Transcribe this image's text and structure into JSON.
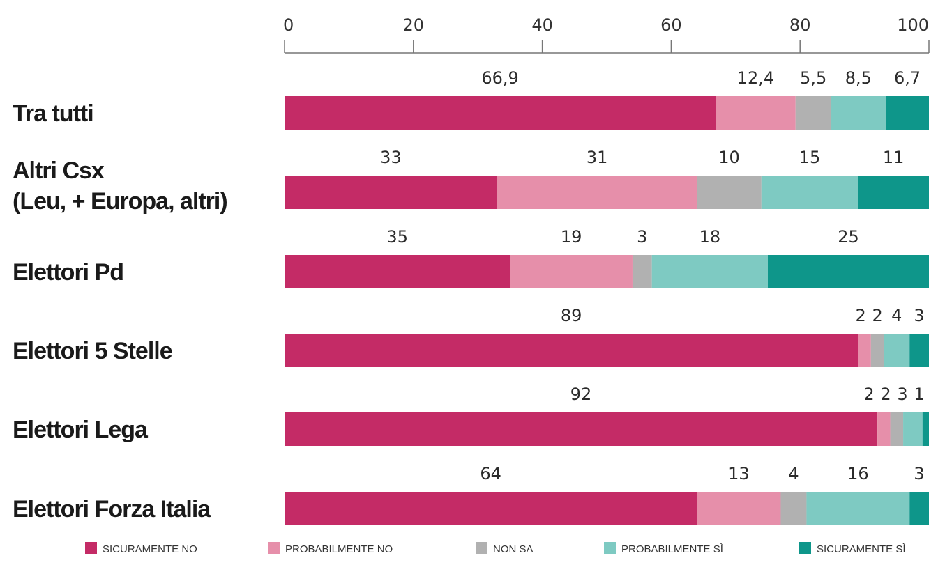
{
  "chart_data": {
    "type": "bar",
    "orientation": "horizontal",
    "stacked": true,
    "xlim": [
      0,
      100
    ],
    "x_ticks": [
      "0",
      "20",
      "40",
      "60",
      "80",
      "100"
    ],
    "x_tick_values": [
      0,
      20,
      40,
      60,
      80,
      100
    ],
    "x_axis_position": "top",
    "grid": false,
    "legend_position": "bottom",
    "categories": [
      "Tra tutti",
      "Altri Csx\n(Leu, + Europa, altri)",
      "Elettori Pd",
      "Elettori 5 Stelle",
      "Elettori Lega",
      "Elettori Forza Italia"
    ],
    "series": [
      {
        "name": "SICURAMENTE NO",
        "color": "#c42b66",
        "values": [
          66.9,
          33,
          35,
          89,
          92,
          64
        ],
        "labels": [
          "66,9",
          "33",
          "35",
          "89",
          "92",
          "64"
        ]
      },
      {
        "name": "PROBABILMENTE NO",
        "color": "#e68faa",
        "values": [
          12.4,
          31,
          19,
          2,
          2,
          13
        ],
        "labels": [
          "12,4",
          "31",
          "19",
          "2",
          "2",
          "13"
        ]
      },
      {
        "name": "NON SA",
        "color": "#b1b1b1",
        "values": [
          5.5,
          10,
          3,
          2,
          2,
          4
        ],
        "labels": [
          "5,5",
          "10",
          "3",
          "2",
          "2",
          "4"
        ]
      },
      {
        "name": "PROBABILMENTE SÌ",
        "color": "#7ecac2",
        "values": [
          8.5,
          15,
          18,
          4,
          3,
          16
        ],
        "labels": [
          "8,5",
          "15",
          "18",
          "4",
          "3",
          "16"
        ]
      },
      {
        "name": "SICURAMENTE SÌ",
        "color": "#0e968a",
        "values": [
          6.7,
          11,
          25,
          3,
          1,
          3
        ],
        "labels": [
          "6,7",
          "11",
          "25",
          "3",
          "1",
          "3"
        ]
      }
    ]
  }
}
